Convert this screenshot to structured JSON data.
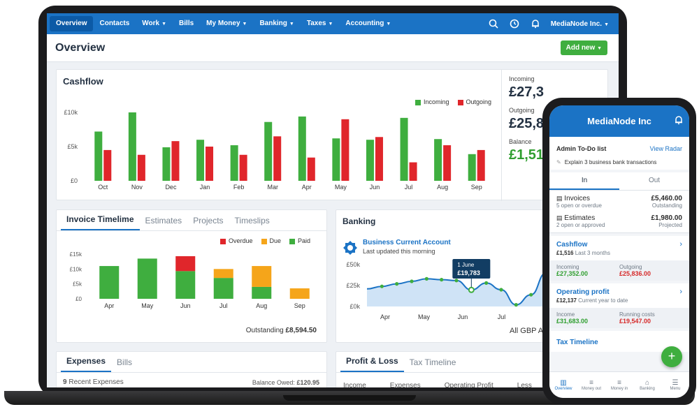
{
  "nav": {
    "items": [
      {
        "label": "Overview",
        "caret": false
      },
      {
        "label": "Contacts",
        "caret": false
      },
      {
        "label": "Work",
        "caret": true
      },
      {
        "label": "Bills",
        "caret": false
      },
      {
        "label": "My Money",
        "caret": true
      },
      {
        "label": "Banking",
        "caret": true
      },
      {
        "label": "Taxes",
        "caret": true
      },
      {
        "label": "Accounting",
        "caret": true
      }
    ],
    "company": "MediaNode Inc."
  },
  "page": {
    "title": "Overview",
    "add_new": "Add new"
  },
  "cashflow": {
    "title": "Cashflow",
    "legend": {
      "incoming": "Incoming",
      "outgoing": "Outgoing"
    },
    "incoming_label": "Incoming",
    "incoming_value": "£27,3",
    "outgoing_label": "Outgoing",
    "outgoing_value": "£25,8",
    "balance_label": "Balance",
    "balance_value": "£1,51"
  },
  "invoice": {
    "tabs": [
      "Invoice Timelime",
      "Estimates",
      "Projects",
      "Timeslips"
    ],
    "legend": {
      "overdue": "Overdue",
      "due": "Due",
      "paid": "Paid"
    },
    "outstanding_label": "Outstanding",
    "outstanding_value": "£8,594.50"
  },
  "banking": {
    "title": "Banking",
    "account_name": "Business Current Account",
    "updated": "Last updated this morning",
    "tooltip_date": "1 June",
    "tooltip_value": "£19,783",
    "footer": "All GBP A"
  },
  "expenses": {
    "tabs": [
      "Expenses",
      "Bills"
    ],
    "count": "9",
    "count_label": "Recent Expenses",
    "balance_owed_label": "Balance Owed:",
    "balance_owed_value": "£120.95"
  },
  "profit_loss": {
    "tabs": [
      "Profit & Loss",
      "Tax Timeline"
    ],
    "columns": [
      "Income",
      "Expenses",
      "Operating Profit",
      "Less"
    ]
  },
  "phone": {
    "title": "MediaNode Inc",
    "todo_title": "Admin To-Do list",
    "view_radar": "View Radar",
    "todo_item": "Explain 3 business bank transactions",
    "tab_in": "In",
    "tab_out": "Out",
    "invoices": {
      "label": "Invoices",
      "value": "£5,460.00",
      "sub": "5 open or overdue",
      "sub_right": "Outstanding"
    },
    "estimates": {
      "label": "Estimates",
      "value": "£1,980.00",
      "sub": "2 open or approved",
      "sub_right": "Projected"
    },
    "cashflow": {
      "title": "Cashflow",
      "amount": "£1,516",
      "period": "Last 3 months",
      "incoming_label": "Incoming",
      "incoming": "£27,352.00",
      "outgoing_label": "Outgoing",
      "outgoing": "£25,836.00"
    },
    "operating": {
      "title": "Operating profit",
      "amount": "£12,137",
      "period": "Current year to date",
      "income_label": "Income",
      "income": "£31,683.00",
      "running_label": "Running costs",
      "running": "£19,547.00"
    },
    "tax_timeline": "Tax Timeline",
    "tabbar": [
      "Overview",
      "Money out",
      "Money in",
      "Banking",
      "Menu"
    ]
  },
  "colors": {
    "brand": "#1b73c5",
    "incoming": "#3fae3f",
    "outgoing": "#e0262b",
    "due": "#f5a51a"
  },
  "chart_data": [
    {
      "type": "bar",
      "categories": [
        "Oct",
        "Nov",
        "Dec",
        "Jan",
        "Feb",
        "Mar",
        "Apr",
        "May",
        "Jun",
        "Jul",
        "Aug",
        "Sep"
      ],
      "series": [
        {
          "name": "Incoming",
          "values": [
            7200,
            10000,
            4900,
            6000,
            5200,
            8600,
            9400,
            6200,
            6000,
            9200,
            6100,
            3900
          ]
        },
        {
          "name": "Outgoing",
          "values": [
            4500,
            3800,
            5800,
            5000,
            3800,
            6500,
            3400,
            9000,
            6400,
            2700,
            5200,
            4500
          ]
        }
      ],
      "yticks": [
        "£0",
        "£5k",
        "£10k"
      ],
      "ylim": [
        0,
        10000
      ]
    },
    {
      "type": "bar",
      "stacked": true,
      "categories": [
        "Apr",
        "May",
        "Jun",
        "Jul",
        "Aug",
        "Sep"
      ],
      "series": [
        {
          "name": "Paid",
          "values": [
            11000,
            13500,
            9300,
            7000,
            4000,
            0
          ]
        },
        {
          "name": "Due",
          "values": [
            0,
            0,
            0,
            3000,
            7000,
            3500
          ]
        },
        {
          "name": "Overdue",
          "values": [
            0,
            0,
            5000,
            0,
            0,
            0
          ]
        }
      ],
      "yticks": [
        "£0",
        "£5k",
        "£10k",
        "£15k"
      ],
      "ylim": [
        0,
        15000
      ]
    },
    {
      "type": "area",
      "x": [
        "Apr",
        "May",
        "Jun",
        "Jul"
      ],
      "points": [
        21000,
        24000,
        27000,
        30000,
        33000,
        32000,
        31000,
        19783,
        28000,
        20000,
        2000,
        14000,
        40000
      ],
      "yticks": [
        "£0k",
        "£25k",
        "£50k"
      ],
      "ylim": [
        0,
        50000
      ]
    }
  ]
}
